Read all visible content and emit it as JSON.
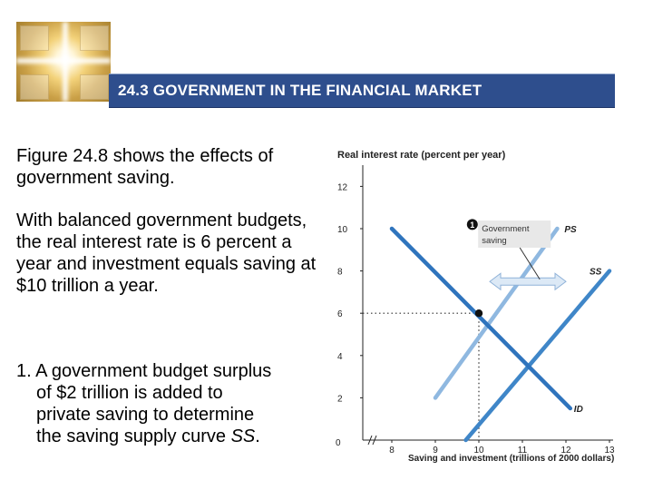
{
  "slide": {
    "title": "24.3 GOVERNMENT IN THE FINANCIAL MARKET",
    "paragraph1": "Figure 24.8 shows the effects of government saving.",
    "paragraph2": "With balanced government budgets, the real interest rate is 6 percent a year and investment equals saving at $10 trillion a year.",
    "item1_number": "1.",
    "item1_line1": "A government budget surplus",
    "item1_line2": "of $2 trillion is added to",
    "item1_line3": "private saving to determine",
    "item1_line4_prefix": "the saving supply curve ",
    "item1_line4_italic": "SS",
    "item1_line4_suffix": "."
  },
  "colors": {
    "title_bar": "#2e4e8d",
    "ps_curve": "#8fb8e0",
    "ss_curve": "#3f86c8",
    "id_curve": "#2f74bd",
    "arrow": "#dce9f6"
  },
  "chart_data": {
    "type": "line",
    "ylabel": "Real interest rate (percent per year)",
    "xlabel": "Saving and investment (trillions of 2000 dollars)",
    "x_ticks": [
      "0",
      "8",
      "9",
      "10",
      "11",
      "12",
      "13"
    ],
    "y_ticks": [
      "2",
      "4",
      "6",
      "8",
      "10",
      "12"
    ],
    "xlim": [
      7.2,
      13
    ],
    "ylim": [
      0,
      12.5
    ],
    "series": [
      {
        "name": "PS",
        "x": [
          9.0,
          11.8
        ],
        "y": [
          2.0,
          10.0
        ]
      },
      {
        "name": "SS",
        "x": [
          9.7,
          13.0
        ],
        "y": [
          0.0,
          8.0
        ]
      },
      {
        "name": "ID",
        "x": [
          8.0,
          12.1
        ],
        "y": [
          10.0,
          1.5
        ]
      }
    ],
    "equilibrium": {
      "x": 10,
      "y": 6
    },
    "annotation": {
      "number": "1",
      "text_line1": "Government",
      "text_line2": "saving"
    },
    "arrow": {
      "x_from": 10.25,
      "x_to": 12.0,
      "y": 7.5
    }
  }
}
